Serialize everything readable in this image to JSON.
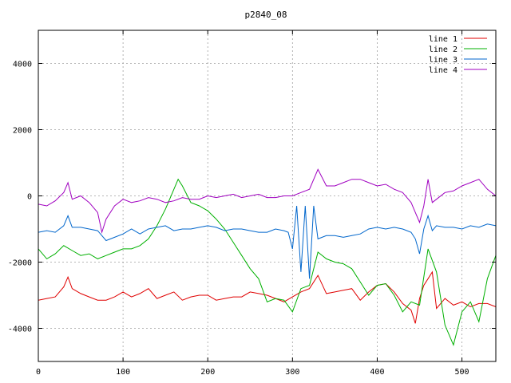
{
  "chart_data": {
    "type": "line",
    "title": "p2840_08",
    "xlim": [
      0,
      540
    ],
    "ylim": [
      -5000,
      5000
    ],
    "x_ticks": [
      0,
      100,
      200,
      300,
      400,
      500
    ],
    "y_ticks": [
      -4000,
      -2000,
      0,
      2000,
      4000
    ],
    "grid": true,
    "legend_position": "top-right",
    "series": [
      {
        "name": "line 1",
        "color": "#e00000",
        "x": [
          0,
          10,
          20,
          30,
          35,
          40,
          50,
          60,
          70,
          80,
          90,
          100,
          110,
          120,
          130,
          140,
          150,
          160,
          170,
          180,
          190,
          200,
          210,
          220,
          230,
          240,
          250,
          260,
          270,
          280,
          290,
          300,
          310,
          320,
          330,
          340,
          350,
          360,
          370,
          380,
          390,
          400,
          410,
          420,
          430,
          440,
          445,
          450,
          455,
          460,
          465,
          470,
          480,
          490,
          500,
          510,
          520,
          530,
          540
        ],
        "y": [
          -3150,
          -3100,
          -3050,
          -2750,
          -2450,
          -2800,
          -2950,
          -3050,
          -3150,
          -3150,
          -3050,
          -2900,
          -3050,
          -2950,
          -2800,
          -3100,
          -3000,
          -2900,
          -3150,
          -3050,
          -3000,
          -3000,
          -3150,
          -3100,
          -3050,
          -3050,
          -2900,
          -2950,
          -3000,
          -3100,
          -3200,
          -3050,
          -2900,
          -2800,
          -2400,
          -2950,
          -2900,
          -2850,
          -2800,
          -3150,
          -2900,
          -2700,
          -2650,
          -2900,
          -3250,
          -3450,
          -3850,
          -3100,
          -2700,
          -2500,
          -2300,
          -3400,
          -3100,
          -3300,
          -3200,
          -3350,
          -3250,
          -3250,
          -3350
        ]
      },
      {
        "name": "line 2",
        "color": "#00b000",
        "x": [
          0,
          10,
          20,
          30,
          40,
          50,
          60,
          70,
          80,
          90,
          100,
          110,
          120,
          130,
          140,
          150,
          160,
          165,
          170,
          180,
          190,
          200,
          210,
          220,
          230,
          240,
          250,
          260,
          270,
          280,
          290,
          300,
          310,
          320,
          330,
          340,
          350,
          360,
          370,
          380,
          390,
          400,
          410,
          420,
          430,
          440,
          450,
          460,
          470,
          480,
          490,
          500,
          510,
          520,
          530,
          540
        ],
        "y": [
          -1600,
          -1900,
          -1750,
          -1500,
          -1650,
          -1800,
          -1750,
          -1900,
          -1800,
          -1700,
          -1600,
          -1600,
          -1500,
          -1300,
          -900,
          -400,
          200,
          500,
          300,
          -200,
          -300,
          -450,
          -700,
          -1000,
          -1400,
          -1800,
          -2200,
          -2500,
          -3200,
          -3100,
          -3150,
          -3500,
          -2800,
          -2700,
          -1700,
          -1900,
          -2000,
          -2050,
          -2200,
          -2600,
          -3000,
          -2700,
          -2650,
          -3000,
          -3500,
          -3200,
          -3300,
          -1600,
          -2300,
          -3900,
          -4500,
          -3500,
          -3200,
          -3800,
          -2500,
          -1800
        ]
      },
      {
        "name": "line 3",
        "color": "#0066cc",
        "x": [
          0,
          10,
          20,
          30,
          35,
          40,
          50,
          60,
          70,
          75,
          80,
          90,
          100,
          110,
          120,
          130,
          140,
          150,
          160,
          170,
          180,
          190,
          200,
          210,
          220,
          230,
          240,
          250,
          260,
          270,
          280,
          290,
          295,
          300,
          305,
          310,
          315,
          320,
          325,
          330,
          340,
          350,
          360,
          370,
          380,
          390,
          400,
          410,
          420,
          430,
          440,
          445,
          450,
          455,
          460,
          465,
          470,
          480,
          490,
          500,
          510,
          520,
          530,
          540
        ],
        "y": [
          -1100,
          -1050,
          -1100,
          -900,
          -600,
          -950,
          -950,
          -1000,
          -1050,
          -1200,
          -1350,
          -1250,
          -1150,
          -1000,
          -1150,
          -1000,
          -950,
          -900,
          -1050,
          -1000,
          -1000,
          -950,
          -900,
          -950,
          -1050,
          -1000,
          -1000,
          -1050,
          -1100,
          -1100,
          -1000,
          -1050,
          -1100,
          -1600,
          -300,
          -2300,
          -300,
          -2500,
          -300,
          -1300,
          -1200,
          -1200,
          -1250,
          -1200,
          -1150,
          -1000,
          -950,
          -1000,
          -950,
          -1000,
          -1100,
          -1300,
          -1750,
          -1000,
          -600,
          -1050,
          -900,
          -950,
          -950,
          -1000,
          -900,
          -950,
          -850,
          -900
        ]
      },
      {
        "name": "line 4",
        "color": "#a000c0",
        "x": [
          0,
          10,
          20,
          30,
          35,
          40,
          50,
          60,
          70,
          75,
          80,
          90,
          100,
          110,
          120,
          130,
          140,
          150,
          160,
          170,
          180,
          190,
          200,
          210,
          220,
          230,
          240,
          250,
          260,
          270,
          280,
          290,
          300,
          310,
          320,
          330,
          340,
          350,
          360,
          370,
          380,
          390,
          400,
          410,
          420,
          430,
          440,
          445,
          450,
          455,
          460,
          465,
          470,
          480,
          490,
          500,
          510,
          520,
          530,
          540
        ],
        "y": [
          -250,
          -300,
          -150,
          100,
          400,
          -100,
          0,
          -200,
          -500,
          -1100,
          -700,
          -300,
          -100,
          -200,
          -150,
          -50,
          -100,
          -200,
          -150,
          -50,
          -100,
          -100,
          0,
          -50,
          0,
          50,
          -50,
          0,
          50,
          -50,
          -50,
          0,
          0,
          100,
          200,
          800,
          300,
          300,
          400,
          500,
          500,
          400,
          300,
          350,
          200,
          100,
          -200,
          -500,
          -800,
          -300,
          500,
          -200,
          -100,
          100,
          150,
          300,
          400,
          500,
          200,
          0
        ]
      }
    ]
  }
}
